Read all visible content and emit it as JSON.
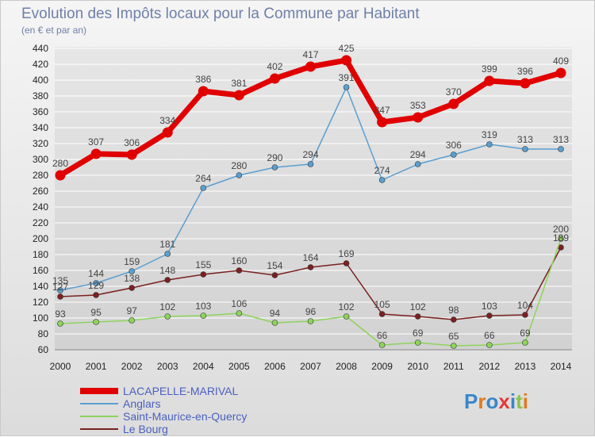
{
  "chart_data": {
    "type": "line",
    "title": "Evolution des Impôts locaux pour la Commune par Habitant",
    "subtitle": "(en € et par an)",
    "x": [
      "2000",
      "2001",
      "2002",
      "2003",
      "2004",
      "2005",
      "2006",
      "2007",
      "2008",
      "2009",
      "2010",
      "2011",
      "2012",
      "2013",
      "2014"
    ],
    "ylim": [
      60,
      440
    ],
    "yticks": [
      60,
      80,
      100,
      120,
      140,
      160,
      180,
      200,
      220,
      240,
      260,
      280,
      300,
      320,
      340,
      360,
      380,
      400,
      420,
      440
    ],
    "grid": true,
    "legend_position": "bottom-left",
    "series": [
      {
        "name": "LACAPELLE-MARIVAL",
        "color": "#e00000",
        "values": [
          280,
          307,
          306,
          334,
          386,
          381,
          402,
          417,
          425,
          347,
          353,
          370,
          399,
          396,
          409
        ]
      },
      {
        "name": "Anglars",
        "color": "#5a9fd0",
        "values": [
          135,
          144,
          159,
          181,
          264,
          280,
          290,
          294,
          391,
          274,
          294,
          306,
          319,
          313,
          313
        ]
      },
      {
        "name": "Saint-Maurice-en-Quercy",
        "color": "#8ed35c",
        "values": [
          93,
          95,
          97,
          102,
          103,
          106,
          94,
          96,
          102,
          66,
          69,
          65,
          66,
          69,
          200
        ]
      },
      {
        "name": "Le Bourg",
        "color": "#7a2020",
        "values": [
          127,
          129,
          138,
          148,
          155,
          160,
          154,
          164,
          169,
          105,
          102,
          98,
          103,
          104,
          189
        ]
      }
    ]
  },
  "logo": {
    "text": "Proxiti"
  }
}
